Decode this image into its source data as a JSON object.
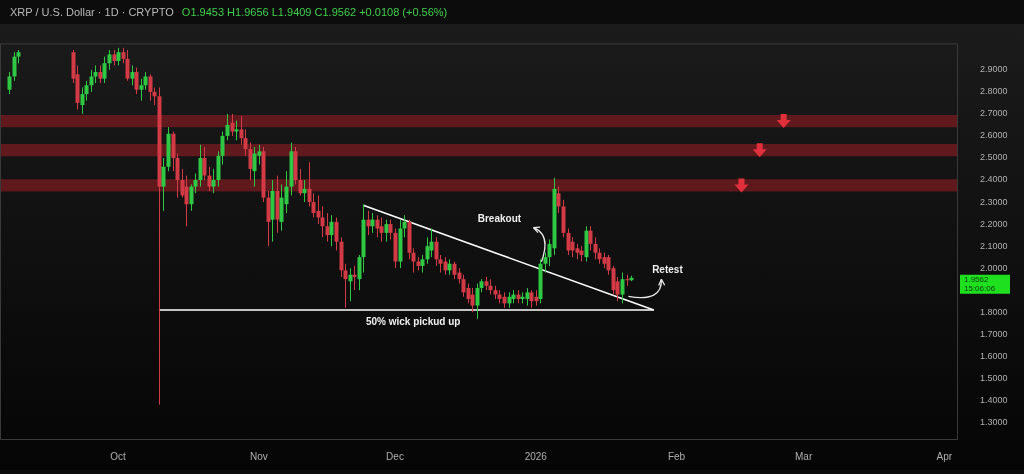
{
  "chart_data": {
    "type": "candlestick",
    "title": "XRP / U.S. Dollar · 1D · CRYPTO",
    "subtitle": "O1.9453 H1.9656 L1.9409 C1.9562 +0.0108 (+0.56%)",
    "x": [
      "2025-09-07",
      "2025-09-08",
      "2025-09-09",
      "2025-09-21",
      "2025-09-22",
      "2025-09-23",
      "2025-09-24",
      "2025-09-25",
      "2025-09-26",
      "2025-09-27",
      "2025-09-28",
      "2025-09-29",
      "2025-09-30",
      "2025-10-01",
      "2025-10-02",
      "2025-10-03",
      "2025-10-04",
      "2025-10-05",
      "2025-10-06",
      "2025-10-07",
      "2025-10-08",
      "2025-10-09",
      "2025-10-10",
      "2025-10-11",
      "2025-10-12",
      "2025-10-13",
      "2025-10-14",
      "2025-10-15",
      "2025-10-16",
      "2025-10-17",
      "2025-10-18",
      "2025-10-19",
      "2025-10-20",
      "2025-10-21",
      "2025-10-22",
      "2025-10-23",
      "2025-10-24",
      "2025-10-25",
      "2025-10-26",
      "2025-10-27",
      "2025-10-28",
      "2025-10-29",
      "2025-10-30",
      "2025-10-31",
      "2025-11-01",
      "2025-11-02",
      "2025-11-03",
      "2025-11-04",
      "2025-11-05",
      "2025-11-06",
      "2025-11-07",
      "2025-11-08",
      "2025-11-09",
      "2025-11-10",
      "2025-11-11",
      "2025-11-12",
      "2025-11-13",
      "2025-11-14",
      "2025-11-15",
      "2025-11-16",
      "2025-11-17",
      "2025-11-18",
      "2025-11-19",
      "2025-11-20",
      "2025-11-21",
      "2025-11-22",
      "2025-11-23",
      "2025-11-24",
      "2025-11-25",
      "2025-11-26",
      "2025-11-27",
      "2025-11-28",
      "2025-11-29",
      "2025-11-30",
      "2025-12-01",
      "2025-12-02",
      "2025-12-03",
      "2025-12-04",
      "2025-12-05",
      "2025-12-06",
      "2025-12-07",
      "2025-12-08",
      "2025-12-09",
      "2025-12-10",
      "2025-12-11",
      "2025-12-12",
      "2025-12-13",
      "2025-12-14",
      "2025-12-15",
      "2025-12-16",
      "2025-12-17",
      "2025-12-18",
      "2025-12-19",
      "2025-12-20",
      "2025-12-21",
      "2025-12-22",
      "2025-12-23",
      "2025-12-24",
      "2025-12-25",
      "2025-12-26",
      "2025-12-27",
      "2025-12-28",
      "2025-12-29",
      "2025-12-30",
      "2025-12-31",
      "2026-01-01",
      "2026-01-02",
      "2026-01-03",
      "2026-01-04",
      "2026-01-05",
      "2026-01-06",
      "2026-01-07",
      "2026-01-08",
      "2026-01-09",
      "2026-01-10",
      "2026-01-11",
      "2026-01-12",
      "2026-01-13",
      "2026-01-14",
      "2026-01-15",
      "2026-01-16",
      "2026-01-17",
      "2026-01-18",
      "2026-01-19",
      "2026-01-20",
      "2026-01-21",
      "2026-01-22"
    ],
    "ohlc": [
      [
        2.81,
        2.89,
        2.79,
        2.87
      ],
      [
        2.87,
        2.98,
        2.85,
        2.96
      ],
      [
        2.96,
        2.99,
        2.93,
        2.98
      ],
      [
        2.98,
        2.99,
        2.84,
        2.86
      ],
      [
        2.88,
        2.92,
        2.72,
        2.75
      ],
      [
        2.74,
        2.82,
        2.7,
        2.79
      ],
      [
        2.79,
        2.85,
        2.76,
        2.83
      ],
      [
        2.83,
        2.9,
        2.8,
        2.87
      ],
      [
        2.87,
        2.92,
        2.84,
        2.89
      ],
      [
        2.89,
        2.92,
        2.84,
        2.86
      ],
      [
        2.86,
        2.96,
        2.84,
        2.93
      ],
      [
        2.93,
        2.99,
        2.9,
        2.97
      ],
      [
        2.97,
        2.99,
        2.92,
        2.94
      ],
      [
        2.94,
        3.0,
        2.92,
        2.98
      ],
      [
        2.98,
        3.0,
        2.93,
        2.95
      ],
      [
        2.95,
        2.99,
        2.85,
        2.86
      ],
      [
        2.86,
        2.92,
        2.83,
        2.89
      ],
      [
        2.89,
        2.91,
        2.79,
        2.81
      ],
      [
        2.81,
        2.86,
        2.76,
        2.83
      ],
      [
        2.83,
        2.89,
        2.81,
        2.87
      ],
      [
        2.87,
        2.88,
        2.76,
        2.8
      ],
      [
        2.8,
        2.82,
        2.74,
        2.78
      ],
      [
        2.78,
        2.82,
        1.38,
        2.37
      ],
      [
        2.37,
        2.5,
        2.26,
        2.46
      ],
      [
        2.46,
        2.64,
        2.44,
        2.61
      ],
      [
        2.61,
        2.62,
        2.44,
        2.5
      ],
      [
        2.5,
        2.52,
        2.32,
        2.4
      ],
      [
        2.4,
        2.45,
        2.32,
        2.33
      ],
      [
        2.37,
        2.42,
        2.19,
        2.29
      ],
      [
        2.29,
        2.38,
        2.26,
        2.37
      ],
      [
        2.37,
        2.43,
        2.34,
        2.4
      ],
      [
        2.4,
        2.56,
        2.37,
        2.5
      ],
      [
        2.5,
        2.55,
        2.4,
        2.42
      ],
      [
        2.42,
        2.46,
        2.35,
        2.37
      ],
      [
        2.37,
        2.45,
        2.34,
        2.4
      ],
      [
        2.4,
        2.53,
        2.37,
        2.51
      ],
      [
        2.51,
        2.62,
        2.47,
        2.6
      ],
      [
        2.6,
        2.7,
        2.58,
        2.65
      ],
      [
        2.66,
        2.7,
        2.6,
        2.62
      ],
      [
        2.62,
        2.67,
        2.58,
        2.63
      ],
      [
        2.63,
        2.69,
        2.56,
        2.59
      ],
      [
        2.59,
        2.63,
        2.51,
        2.54
      ],
      [
        2.54,
        2.57,
        2.4,
        2.45
      ],
      [
        2.44,
        2.55,
        2.37,
        2.52
      ],
      [
        2.51,
        2.56,
        2.47,
        2.53
      ],
      [
        2.53,
        2.55,
        2.3,
        2.32
      ],
      [
        2.32,
        2.35,
        2.1,
        2.21
      ],
      [
        2.22,
        2.4,
        2.12,
        2.35
      ],
      [
        2.35,
        2.42,
        2.16,
        2.22
      ],
      [
        2.21,
        2.38,
        2.17,
        2.32
      ],
      [
        2.29,
        2.44,
        2.25,
        2.37
      ],
      [
        2.37,
        2.57,
        2.33,
        2.53
      ],
      [
        2.53,
        2.55,
        2.38,
        2.4
      ],
      [
        2.4,
        2.45,
        2.33,
        2.34
      ],
      [
        2.34,
        2.4,
        2.3,
        2.36
      ],
      [
        2.36,
        2.48,
        2.28,
        2.3
      ],
      [
        2.3,
        2.34,
        2.23,
        2.25
      ],
      [
        2.26,
        2.33,
        2.2,
        2.23
      ],
      [
        2.23,
        2.28,
        2.14,
        2.19
      ],
      [
        2.19,
        2.25,
        2.12,
        2.15
      ],
      [
        2.15,
        2.24,
        2.1,
        2.21
      ],
      [
        2.21,
        2.23,
        2.08,
        2.12
      ],
      [
        2.12,
        2.14,
        1.96,
        1.99
      ],
      [
        1.99,
        2.02,
        1.82,
        1.95
      ],
      [
        1.94,
        2.0,
        1.85,
        1.97
      ],
      [
        1.97,
        2.01,
        1.9,
        1.96
      ],
      [
        1.95,
        2.06,
        1.9,
        2.05
      ],
      [
        2.05,
        2.29,
        1.98,
        2.22
      ],
      [
        2.22,
        2.26,
        2.15,
        2.19
      ],
      [
        2.19,
        2.25,
        2.16,
        2.22
      ],
      [
        2.22,
        2.24,
        2.14,
        2.18
      ],
      [
        2.19,
        2.23,
        2.12,
        2.16
      ],
      [
        2.16,
        2.22,
        2.12,
        2.2
      ],
      [
        2.2,
        2.22,
        2.13,
        2.16
      ],
      [
        2.16,
        2.18,
        2.0,
        2.03
      ],
      [
        2.03,
        2.22,
        2.0,
        2.18
      ],
      [
        2.18,
        2.24,
        2.14,
        2.21
      ],
      [
        2.21,
        2.22,
        2.04,
        2.07
      ],
      [
        2.07,
        2.09,
        1.98,
        2.03
      ],
      [
        2.03,
        2.05,
        1.99,
        2.01
      ],
      [
        2.01,
        2.06,
        1.98,
        2.04
      ],
      [
        2.04,
        2.14,
        2.02,
        2.1
      ],
      [
        2.08,
        2.18,
        2.05,
        2.12
      ],
      [
        2.12,
        2.14,
        2.01,
        2.04
      ],
      [
        2.04,
        2.06,
        1.98,
        2.02
      ],
      [
        2.03,
        2.05,
        1.97,
        1.99
      ],
      [
        1.99,
        2.04,
        1.97,
        2.02
      ],
      [
        2.02,
        2.03,
        1.95,
        1.97
      ],
      [
        1.98,
        2.0,
        1.93,
        1.95
      ],
      [
        1.95,
        1.97,
        1.87,
        1.89
      ],
      [
        1.91,
        1.93,
        1.84,
        1.86
      ],
      [
        1.88,
        1.91,
        1.8,
        1.83
      ],
      [
        1.83,
        1.93,
        1.77,
        1.91
      ],
      [
        1.91,
        1.95,
        1.89,
        1.94
      ],
      [
        1.94,
        1.96,
        1.9,
        1.92
      ],
      [
        1.92,
        1.95,
        1.88,
        1.9
      ],
      [
        1.9,
        1.92,
        1.86,
        1.88
      ],
      [
        1.88,
        1.9,
        1.84,
        1.86
      ],
      [
        1.87,
        1.89,
        1.82,
        1.84
      ],
      [
        1.84,
        1.89,
        1.82,
        1.87
      ],
      [
        1.86,
        1.9,
        1.84,
        1.88
      ],
      [
        1.88,
        1.9,
        1.84,
        1.86
      ],
      [
        1.86,
        1.89,
        1.84,
        1.87
      ],
      [
        1.86,
        1.91,
        1.83,
        1.89
      ],
      [
        1.89,
        1.9,
        1.82,
        1.85
      ],
      [
        1.87,
        1.9,
        1.83,
        1.85
      ],
      [
        1.86,
        2.04,
        1.84,
        2.02
      ],
      [
        2.02,
        2.07,
        1.98,
        2.05
      ],
      [
        2.05,
        2.13,
        2.01,
        2.11
      ],
      [
        2.09,
        2.41,
        2.06,
        2.36
      ],
      [
        2.34,
        2.37,
        2.25,
        2.28
      ],
      [
        2.28,
        2.31,
        2.14,
        2.16
      ],
      [
        2.16,
        2.18,
        2.06,
        2.08
      ],
      [
        2.12,
        2.14,
        2.05,
        2.08
      ],
      [
        2.09,
        2.11,
        2.04,
        2.07
      ],
      [
        2.08,
        2.1,
        2.03,
        2.06
      ],
      [
        2.05,
        2.19,
        2.03,
        2.17
      ],
      [
        2.17,
        2.19,
        2.08,
        2.11
      ],
      [
        2.11,
        2.14,
        2.04,
        2.07
      ],
      [
        2.07,
        2.09,
        2.02,
        2.04
      ],
      [
        2.05,
        2.07,
        2.0,
        2.02
      ],
      [
        2.05,
        2.06,
        1.97,
        1.99
      ],
      [
        2.0,
        2.01,
        1.88,
        1.9
      ],
      [
        1.94,
        1.96,
        1.85,
        1.88
      ],
      [
        1.88,
        1.98,
        1.84,
        1.95
      ],
      [
        1.95,
        1.97,
        1.92,
        1.945
      ],
      [
        1.9453,
        1.9656,
        1.9409,
        1.9562
      ]
    ],
    "series": [
      {
        "type": "line",
        "color": "#ffffff",
        "x": [
          "2025-11-24",
          "2026-01-27"
        ],
        "values": [
          2.285,
          1.81
        ]
      },
      {
        "type": "line",
        "color": "#ffffff",
        "x": [
          "2025-10-10",
          "2026-01-27"
        ],
        "values": [
          1.81,
          1.81
        ]
      }
    ],
    "marker": "none",
    "bands": [
      {
        "axis": "y",
        "from": 2.64,
        "to": 2.695,
        "color": "#7a1c22"
      },
      {
        "axis": "y",
        "from": 2.508,
        "to": 2.563,
        "color": "#7a1c22"
      },
      {
        "axis": "y",
        "from": 2.348,
        "to": 2.403,
        "color": "#7a1c22"
      }
    ],
    "annotations": [
      "Breakout",
      "Retest",
      "50% wick pickud up",
      "1.9562\n15:06:06"
    ],
    "xlim": [
      "2025-09-05",
      "2026-04-04"
    ],
    "xticks": [
      {
        "value": "2025-10-01",
        "label": "Oct"
      },
      {
        "value": "2025-11-01",
        "label": "Nov"
      },
      {
        "value": "2025-12-01",
        "label": "Dec"
      },
      {
        "value": "2026-01-01",
        "label": "2026"
      },
      {
        "value": "2026-02-01",
        "label": "Feb"
      },
      {
        "value": "2026-03-01",
        "label": "Mar"
      },
      {
        "value": "2026-04-01",
        "label": "Apr"
      }
    ],
    "ylim": [
      1.22,
      3.02
    ],
    "yticks": [
      {
        "value": 1.3,
        "label": "1.3000"
      },
      {
        "value": 1.4,
        "label": "1.4000"
      },
      {
        "value": 1.5,
        "label": "1.5000"
      },
      {
        "value": 1.6,
        "label": "1.6000"
      },
      {
        "value": 1.7,
        "label": "1.7000"
      },
      {
        "value": 1.8,
        "label": "1.8000"
      },
      {
        "value": 2.0,
        "label": "2.0000"
      },
      {
        "value": 2.1,
        "label": "2.1000"
      },
      {
        "value": 2.2,
        "label": "2.2000"
      },
      {
        "value": 2.3,
        "label": "2.3000"
      },
      {
        "value": 2.4,
        "label": "2.4000"
      },
      {
        "value": 2.5,
        "label": "2.5000"
      },
      {
        "value": 2.6,
        "label": "2.6000"
      },
      {
        "value": 2.7,
        "label": "2.7000"
      },
      {
        "value": 2.8,
        "label": "2.8000"
      },
      {
        "value": 2.9,
        "label": "2.9000"
      }
    ],
    "legend": false
  }
}
